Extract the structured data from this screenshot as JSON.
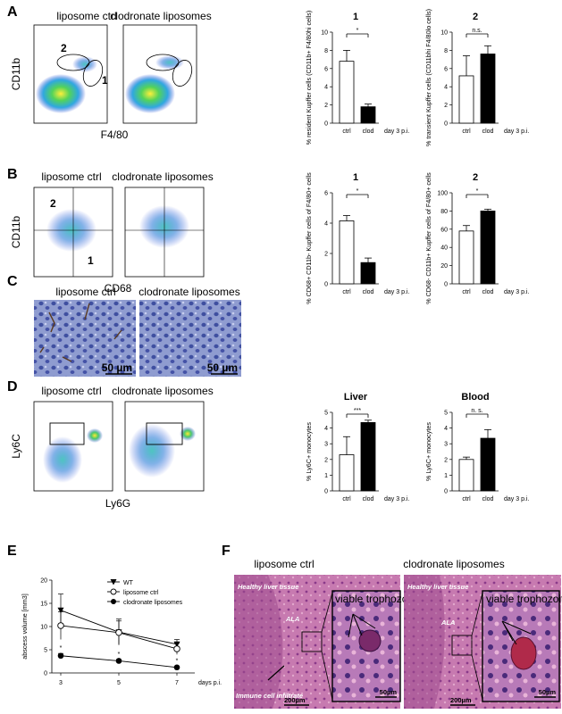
{
  "panel_letters": [
    "A",
    "B",
    "C",
    "D",
    "E",
    "F"
  ],
  "flow": {
    "A": {
      "left_title": "liposome ctrl",
      "right_title": "clodronate liposomes",
      "ylabel": "CD11b",
      "xlabel": "F4/80",
      "gate_labels": [
        "2",
        "1"
      ]
    },
    "B": {
      "left_title": "liposome ctrl",
      "right_title": "clodronate liposomes",
      "ylabel": "CD11b",
      "xlabel": "CD68",
      "gate_labels": [
        "2",
        "1"
      ]
    },
    "D": {
      "left_title": "liposome ctrl",
      "right_title": "clodronate liposomes",
      "ylabel": "Ly6C",
      "xlabel": "Ly6G"
    }
  },
  "histo_C": {
    "left_title": "liposome ctrl",
    "right_title": "clodronate liposomes",
    "scale_left": "50 µm",
    "scale_right": "50 µm"
  },
  "histo_F": {
    "left_title": "liposome ctrl",
    "right_title": "clodronate liposomes",
    "left": {
      "tissue": "Healthy liver tissue",
      "ala": "ALA",
      "infiltrate": "Immune cell infiltrate",
      "inset": "viable trophozoites",
      "scale_big": "200µm",
      "scale_inset": "50µm"
    },
    "right": {
      "tissue": "Healthy liver tissue",
      "ala": "ALA",
      "inset": "viable trophozoites",
      "scale_big": "200µm",
      "scale_inset": "50µm"
    }
  },
  "chart_data": [
    {
      "id": "A1",
      "type": "bar",
      "title": "1",
      "ylabel": "% resident Kupffer cells (CD11b+ F4/80hi cells)",
      "categories": [
        "ctrl",
        "clod"
      ],
      "values": [
        6.8,
        1.8
      ],
      "errors": [
        1.2,
        0.3
      ],
      "ylim": [
        0,
        10
      ],
      "yticks": [
        0,
        2,
        4,
        6,
        8,
        10
      ],
      "significance": "*",
      "suffix": "day 3 p.i."
    },
    {
      "id": "A2",
      "type": "bar",
      "title": "2",
      "ylabel": "% transient Kupffer cells (CD11bhi F4/80lo cells)",
      "categories": [
        "ctrl",
        "clod"
      ],
      "values": [
        5.2,
        7.6
      ],
      "errors": [
        2.2,
        0.9
      ],
      "ylim": [
        0,
        10
      ],
      "yticks": [
        0,
        2,
        4,
        6,
        8,
        10
      ],
      "significance": "n.s.",
      "suffix": "day 3 p.i."
    },
    {
      "id": "B1",
      "type": "bar",
      "title": "1",
      "ylabel": "% CD68+ CD11b- Kupffer cells of F4/80+ cells",
      "categories": [
        "ctrl",
        "clod"
      ],
      "values": [
        4.15,
        1.4
      ],
      "errors": [
        0.35,
        0.3
      ],
      "ylim": [
        0,
        6
      ],
      "yticks": [
        0,
        2,
        4,
        6
      ],
      "significance": "*",
      "suffix": "day 3 p.i."
    },
    {
      "id": "B2",
      "type": "bar",
      "title": "2",
      "ylabel": "% CD68- CD11b+ Kupffer cells of F4/80+ cells",
      "categories": [
        "ctrl",
        "clod"
      ],
      "values": [
        58,
        80
      ],
      "errors": [
        6,
        2
      ],
      "ylim": [
        0,
        100
      ],
      "yticks": [
        0,
        20,
        40,
        60,
        80,
        100
      ],
      "significance": "*",
      "suffix": "day 3 p.i."
    },
    {
      "id": "D1",
      "type": "bar",
      "title": "Liver",
      "ylabel": "% Ly6C+ monocytes",
      "categories": [
        "ctrl",
        "clod"
      ],
      "values": [
        2.3,
        4.35
      ],
      "errors": [
        1.15,
        0.15
      ],
      "ylim": [
        0,
        5
      ],
      "yticks": [
        0,
        1,
        2,
        3,
        4,
        5
      ],
      "significance": "***",
      "suffix": "day 3 p.i."
    },
    {
      "id": "D2",
      "type": "bar",
      "title": "Blood",
      "ylabel": "% Ly6C+ monocytes",
      "categories": [
        "ctrl",
        "clod"
      ],
      "values": [
        2.0,
        3.35
      ],
      "errors": [
        0.15,
        0.55
      ],
      "ylim": [
        0,
        5
      ],
      "yticks": [
        0,
        1,
        2,
        3,
        4,
        5
      ],
      "significance": "n. s.",
      "suffix": "day 3 p.i."
    },
    {
      "id": "E",
      "type": "line",
      "ylabel": "abscess volume [mm3]",
      "xlabel": "days p.i.",
      "x": [
        3,
        5,
        7
      ],
      "ylim": [
        0,
        20
      ],
      "yticks": [
        0,
        5,
        10,
        15,
        20
      ],
      "series": [
        {
          "name": "WT",
          "values": [
            13.5,
            8.8,
            6.2
          ],
          "errors": [
            3.5,
            2.8,
            1.0
          ],
          "marker": "triangle"
        },
        {
          "name": "liposome ctrl",
          "values": [
            10.2,
            8.7,
            5.2
          ],
          "errors": [
            3.0,
            2.5,
            1.2
          ],
          "marker": "open-circle"
        },
        {
          "name": "clodronate liposomes",
          "values": [
            3.7,
            2.6,
            1.2
          ],
          "errors": [
            0.5,
            0.3,
            0.2
          ],
          "marker": "filled-circle"
        }
      ],
      "significance": [
        "*",
        "*",
        "*"
      ]
    }
  ]
}
